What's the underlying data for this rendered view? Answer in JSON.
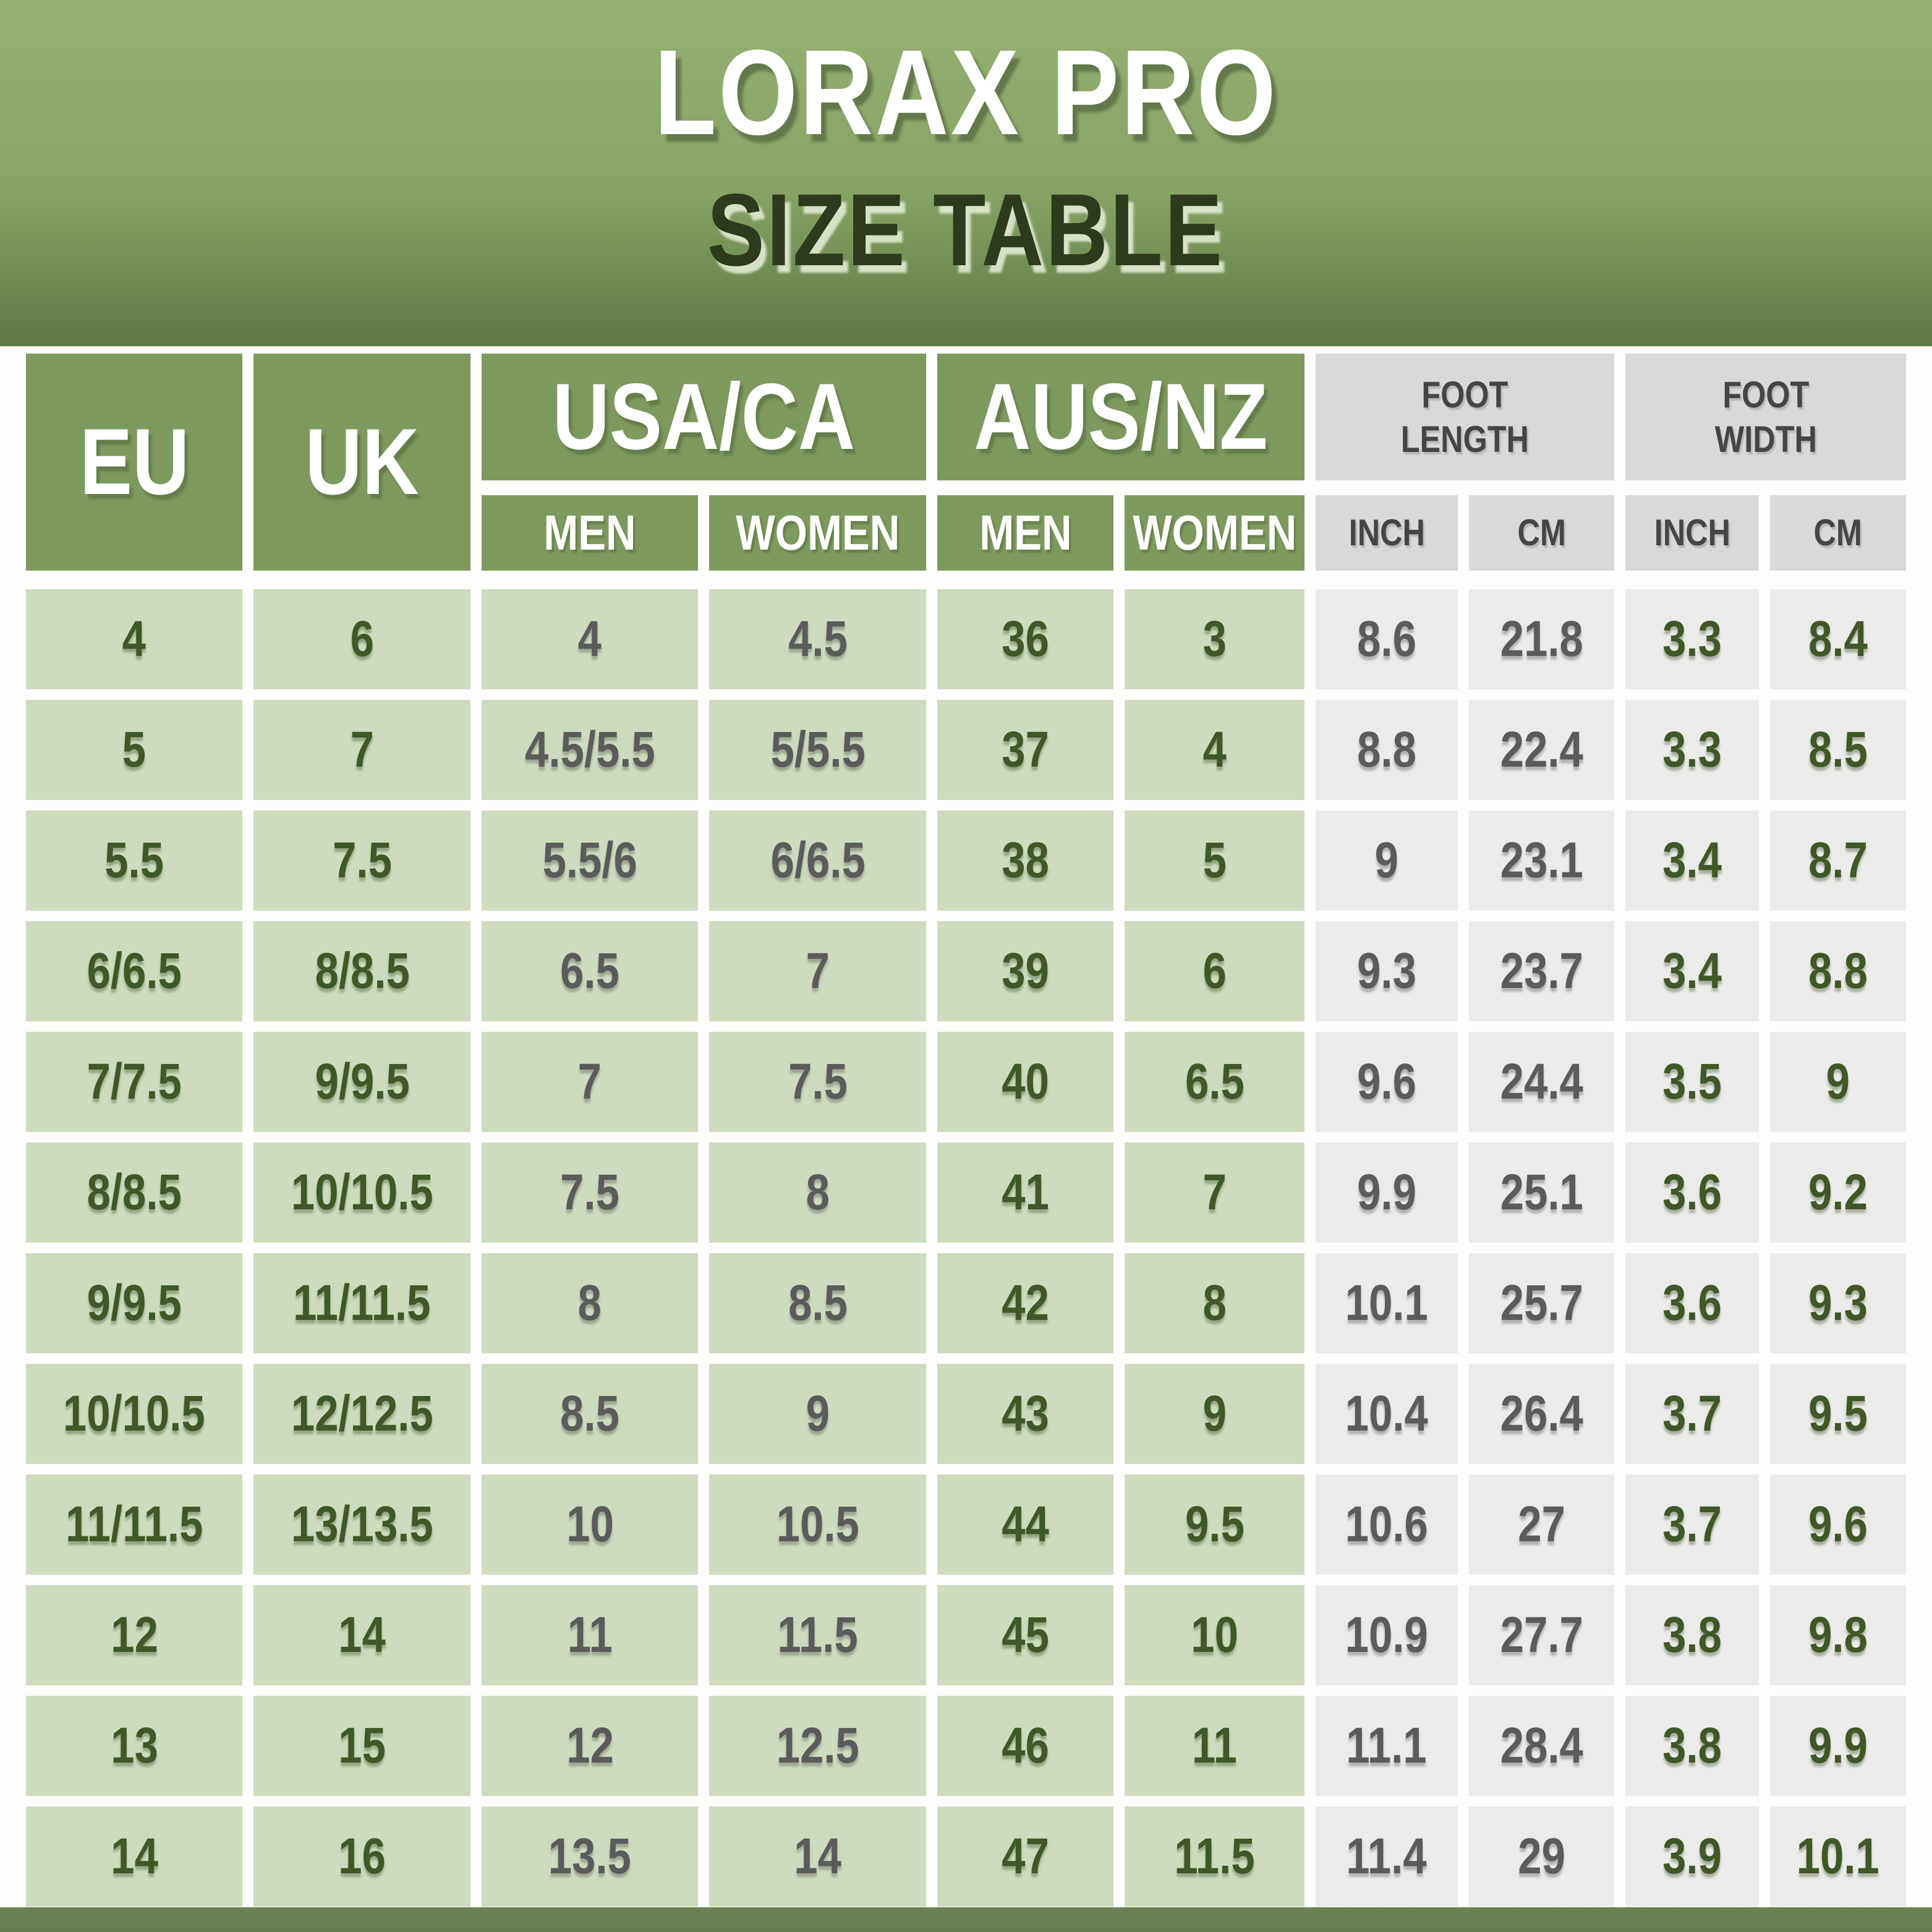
{
  "title": {
    "line1": "LORAX PRO",
    "line2": "SIZE TABLE"
  },
  "header": {
    "usa_ca": "USA/CA",
    "aus_nz": "AUS/NZ",
    "eu": "EU",
    "uk": "UK",
    "foot_length": "FOOT\nLENGTH",
    "foot_width": "FOOT\nWIDTH",
    "men": "MEN",
    "women": "WOMEN",
    "inch": "INCH",
    "cm": "CM"
  },
  "colors": {
    "hero_gradient_top": "#95b273",
    "hero_gradient_bottom": "#5e7846",
    "header_cell_green": "#7d9a5e",
    "header_cell_grey": "#d9d9d9",
    "data_cell_green": "#cddcbe",
    "data_cell_grey": "#ebebe9",
    "text_dark_green": "#3e5826",
    "text_grey": "#5b5b5b",
    "header_text_white": "#ffffff",
    "header_text_grey": "#454545",
    "title_shadow_green": "#5c7046",
    "subtitle_dark_green": "#2e3a1d",
    "bottom_strip": "#667b4e",
    "gap_white": "#fdfdfb"
  },
  "chart_data": {
    "type": "table",
    "title": "LORAX PRO SIZE TABLE",
    "column_groups": [
      {
        "label": "USA/CA",
        "sub": [
          "MEN",
          "WOMEN"
        ]
      },
      {
        "label": "AUS/NZ",
        "sub": [
          "MEN",
          "WOMEN"
        ]
      },
      {
        "label": "EU",
        "sub": []
      },
      {
        "label": "UK",
        "sub": []
      },
      {
        "label": "FOOT LENGTH",
        "sub": [
          "INCH",
          "CM"
        ]
      },
      {
        "label": "FOOT WIDTH",
        "sub": [
          "INCH",
          "CM"
        ]
      }
    ],
    "columns": [
      "USA/CA MEN",
      "USA/CA WOMEN",
      "AUS/NZ MEN",
      "AUS/NZ WOMEN",
      "EU",
      "UK",
      "FOOT LENGTH INCH",
      "FOOT LENGTH CM",
      "FOOT WIDTH INCH",
      "FOOT WIDTH CM"
    ],
    "rows": [
      [
        "4",
        "6",
        "4",
        "4.5",
        "36",
        "3",
        "8.6",
        "21.8",
        "3.3",
        "8.4"
      ],
      [
        "5",
        "7",
        "4.5/5.5",
        "5/5.5",
        "37",
        "4",
        "8.8",
        "22.4",
        "3.3",
        "8.5"
      ],
      [
        "5.5",
        "7.5",
        "5.5/6",
        "6/6.5",
        "38",
        "5",
        "9",
        "23.1",
        "3.4",
        "8.7"
      ],
      [
        "6/6.5",
        "8/8.5",
        "6.5",
        "7",
        "39",
        "6",
        "9.3",
        "23.7",
        "3.4",
        "8.8"
      ],
      [
        "7/7.5",
        "9/9.5",
        "7",
        "7.5",
        "40",
        "6.5",
        "9.6",
        "24.4",
        "3.5",
        "9"
      ],
      [
        "8/8.5",
        "10/10.5",
        "7.5",
        "8",
        "41",
        "7",
        "9.9",
        "25.1",
        "3.6",
        "9.2"
      ],
      [
        "9/9.5",
        "11/11.5",
        "8",
        "8.5",
        "42",
        "8",
        "10.1",
        "25.7",
        "3.6",
        "9.3"
      ],
      [
        "10/10.5",
        "12/12.5",
        "8.5",
        "9",
        "43",
        "9",
        "10.4",
        "26.4",
        "3.7",
        "9.5"
      ],
      [
        "11/11.5",
        "13/13.5",
        "10",
        "10.5",
        "44",
        "9.5",
        "10.6",
        "27",
        "3.7",
        "9.6"
      ],
      [
        "12",
        "14",
        "11",
        "11.5",
        "45",
        "10",
        "10.9",
        "27.7",
        "3.8",
        "9.8"
      ],
      [
        "13",
        "15",
        "12",
        "12.5",
        "46",
        "11",
        "11.1",
        "28.4",
        "3.8",
        "9.9"
      ],
      [
        "14",
        "16",
        "13.5",
        "14",
        "47",
        "11.5",
        "11.4",
        "29",
        "3.9",
        "10.1"
      ]
    ]
  }
}
